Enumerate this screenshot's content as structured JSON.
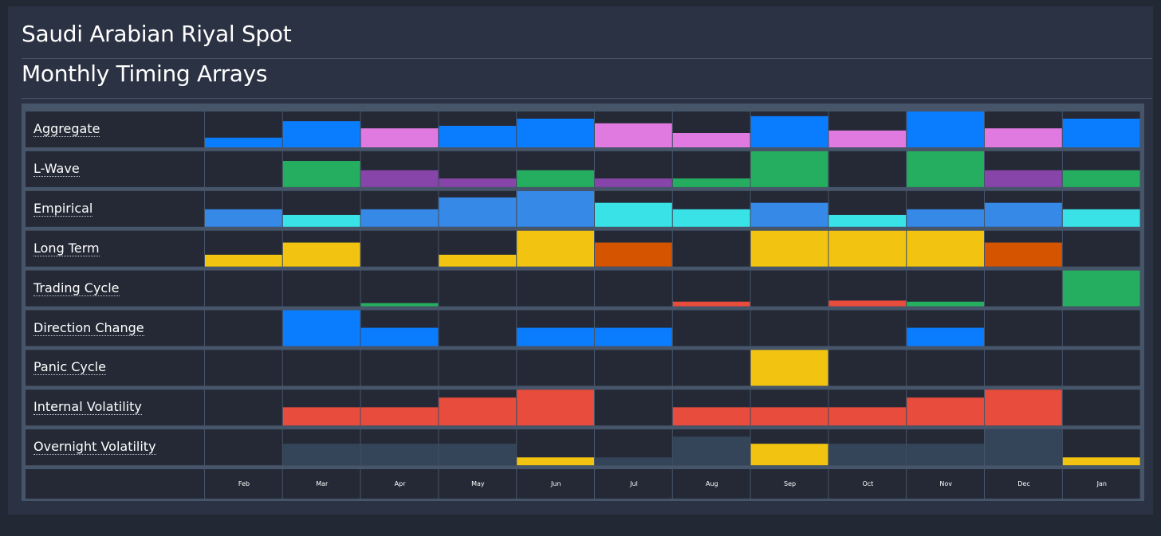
{
  "header": {
    "title": "Saudi Arabian Riyal Spot",
    "subtitle": "Monthly Timing Arrays"
  },
  "colors": {
    "blue": "#0a7cfe",
    "pink": "#e07ae0",
    "green": "#25ae5f",
    "purple": "#8744a9",
    "lightblue": "#3689e6",
    "cyan": "#39e2e6",
    "yellow": "#f2c411",
    "orange": "#d55400",
    "red": "#e74c3c",
    "slate": "#344559",
    "cell_bg": "#242935",
    "grid_line": "#465569"
  },
  "chart_data": {
    "type": "heatmap",
    "categories": [
      "Feb",
      "Mar",
      "Apr",
      "May",
      "Jun",
      "Jul",
      "Aug",
      "Sep",
      "Oct",
      "Nov",
      "Dec",
      "Jan"
    ],
    "ylim": [
      0,
      1
    ],
    "rows": [
      {
        "name": "Aggregate",
        "values": [
          0.27,
          0.73,
          0.53,
          0.6,
          0.8,
          0.67,
          0.4,
          0.87,
          0.47,
          1.0,
          0.53,
          0.8
        ],
        "colors": [
          "blue",
          "blue",
          "pink",
          "blue",
          "blue",
          "pink",
          "pink",
          "blue",
          "pink",
          "blue",
          "pink",
          "blue"
        ]
      },
      {
        "name": "L-Wave",
        "values": [
          0,
          0.73,
          0.47,
          0.24,
          0.47,
          0.24,
          0.24,
          1.0,
          0,
          1.0,
          0.47,
          0.47
        ],
        "colors": [
          "green",
          "green",
          "purple",
          "purple",
          "green",
          "purple",
          "green",
          "green",
          "green",
          "green",
          "purple",
          "green"
        ]
      },
      {
        "name": "Empirical",
        "values": [
          0.49,
          0.33,
          0.49,
          0.82,
          1.0,
          0.67,
          0.49,
          0.67,
          0.33,
          0.49,
          0.67,
          0.49
        ],
        "colors": [
          "lightblue",
          "cyan",
          "lightblue",
          "lightblue",
          "lightblue",
          "cyan",
          "cyan",
          "lightblue",
          "cyan",
          "lightblue",
          "lightblue",
          "cyan"
        ]
      },
      {
        "name": "Long Term",
        "values": [
          0.33,
          0.67,
          0,
          0.33,
          1.0,
          0.67,
          0,
          1.0,
          1.0,
          1.0,
          0.67,
          0
        ],
        "colors": [
          "yellow",
          "yellow",
          "yellow",
          "yellow",
          "yellow",
          "orange",
          "yellow",
          "yellow",
          "yellow",
          "yellow",
          "orange",
          "yellow"
        ]
      },
      {
        "name": "Trading Cycle",
        "values": [
          0,
          0,
          0.09,
          0,
          0,
          0,
          0.13,
          0,
          0.16,
          0.13,
          0,
          1.0
        ],
        "colors": [
          "green",
          "green",
          "green",
          "green",
          "green",
          "green",
          "red",
          "green",
          "red",
          "green",
          "green",
          "green"
        ]
      },
      {
        "name": "Direction Change",
        "values": [
          0,
          1.0,
          0.51,
          0,
          0.51,
          0.51,
          0,
          0,
          0,
          0.51,
          0,
          0
        ],
        "colors": [
          "blue",
          "blue",
          "blue",
          "blue",
          "blue",
          "blue",
          "blue",
          "blue",
          "blue",
          "blue",
          "blue",
          "blue"
        ]
      },
      {
        "name": "Panic Cycle",
        "values": [
          0,
          0,
          0,
          0,
          0,
          0,
          0,
          1.0,
          0,
          0,
          0,
          0
        ],
        "colors": [
          "yellow",
          "yellow",
          "yellow",
          "yellow",
          "yellow",
          "yellow",
          "yellow",
          "yellow",
          "yellow",
          "yellow",
          "yellow",
          "yellow"
        ]
      },
      {
        "name": "Internal Volatility",
        "values": [
          0,
          0.51,
          0.51,
          0.78,
          1.0,
          0,
          0.51,
          0.51,
          0.51,
          0.78,
          1.0,
          0
        ],
        "colors": [
          "red",
          "red",
          "red",
          "red",
          "red",
          "red",
          "red",
          "red",
          "red",
          "red",
          "red",
          "red"
        ]
      },
      {
        "name": "Overnight Volatility",
        "values": [
          0,
          0.6,
          0.6,
          0.6,
          0.22,
          0.22,
          0.8,
          0.6,
          0.6,
          0.6,
          1.0,
          0.22
        ],
        "colors": [
          "slate",
          "slate",
          "slate",
          "slate",
          "yellow",
          "slate",
          "slate",
          "yellow",
          "slate",
          "slate",
          "slate",
          "yellow"
        ]
      }
    ]
  }
}
